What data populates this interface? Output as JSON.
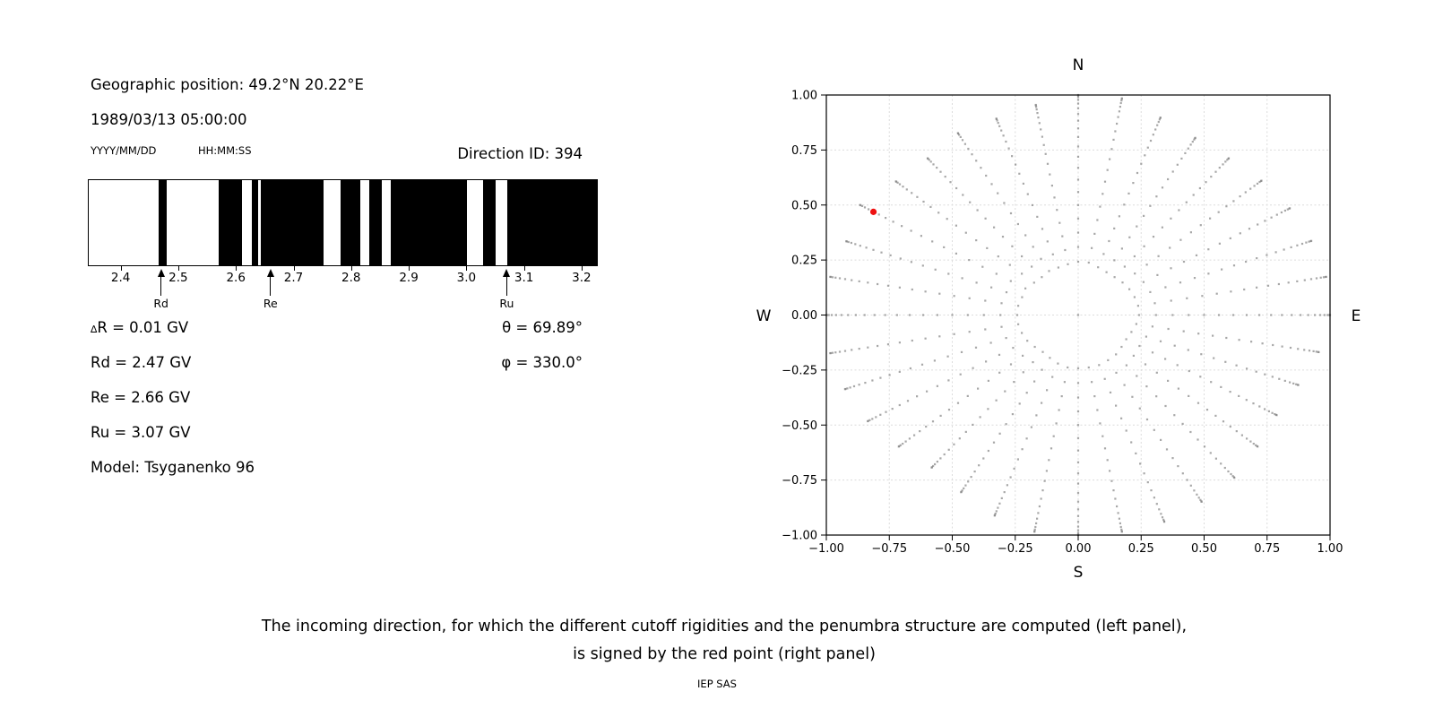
{
  "header": {
    "geo_position": "Geographic position: 49.2°N 20.22°E",
    "datetime": "1989/03/13 05:00:00",
    "date_format": "YYYY/MM/DD",
    "time_format": "HH:MM:SS",
    "direction_id": "Direction ID: 394"
  },
  "results": {
    "delta_symbol": "∆",
    "delta_rest": "R = 0.01 GV",
    "rd": "Rd = 2.47 GV",
    "re": "Re = 2.66 GV",
    "ru": "Ru = 3.07 GV",
    "model": "Model: Tsyganenko 96",
    "theta": "θ = 69.89°",
    "phi": "φ = 330.0°"
  },
  "skymap_labels": {
    "north": "N",
    "south": "S",
    "west": "W",
    "east": "E"
  },
  "caption": {
    "line1": "The incoming direction, for which the different cutoff rigidities and the penumbra structure are computed (left panel),",
    "line2": "is signed by the red point (right panel)",
    "credit": "IEP SAS"
  },
  "colors": {
    "band": "#000000",
    "axis": "#000000",
    "grid": "#dcdcdc",
    "dot": "#7f7f7f",
    "red_point": "#ee1111"
  },
  "chart_data": [
    {
      "type": "bar",
      "name": "penumbra-structure",
      "xlabel_unit": "GV",
      "xlim": [
        2.343,
        3.225
      ],
      "x_ticks": [
        {
          "v": 2.4,
          "label": "2.4"
        },
        {
          "v": 2.5,
          "label": "2.5"
        },
        {
          "v": 2.6,
          "label": "2.6"
        },
        {
          "v": 2.7,
          "label": "2.7"
        },
        {
          "v": 2.8,
          "label": "2.8"
        },
        {
          "v": 2.9,
          "label": "2.9"
        },
        {
          "v": 3.0,
          "label": "3.0"
        },
        {
          "v": 3.1,
          "label": "3.1"
        },
        {
          "v": 3.2,
          "label": "3.2"
        }
      ],
      "black_intervals": [
        [
          2.465,
          2.478
        ],
        [
          2.568,
          2.609
        ],
        [
          2.626,
          2.637
        ],
        [
          2.642,
          2.75
        ],
        [
          2.78,
          2.814
        ],
        [
          2.83,
          2.851
        ],
        [
          2.867,
          2.999
        ],
        [
          3.028,
          3.05
        ],
        [
          3.069,
          3.225
        ]
      ],
      "arrows": [
        {
          "v": 2.47,
          "label": "Rd"
        },
        {
          "v": 2.66,
          "label": "Re"
        },
        {
          "v": 3.07,
          "label": "Ru"
        }
      ]
    },
    {
      "type": "scatter",
      "name": "incoming-direction-grid",
      "xlim": [
        -1,
        1
      ],
      "ylim": [
        -1,
        1
      ],
      "grid": true,
      "x_ticks": [
        {
          "v": -1.0,
          "label": "−1.00"
        },
        {
          "v": -0.75,
          "label": "−0.75"
        },
        {
          "v": -0.5,
          "label": "−0.50"
        },
        {
          "v": -0.25,
          "label": "−0.25"
        },
        {
          "v": 0.0,
          "label": "0.00"
        },
        {
          "v": 0.25,
          "label": "0.25"
        },
        {
          "v": 0.5,
          "label": "0.50"
        },
        {
          "v": 0.75,
          "label": "0.75"
        },
        {
          "v": 1.0,
          "label": "1.00"
        }
      ],
      "y_ticks": [
        {
          "v": 1.0,
          "label": "1.00"
        },
        {
          "v": 0.75,
          "label": "0.75"
        },
        {
          "v": 0.5,
          "label": "0.50"
        },
        {
          "v": 0.25,
          "label": "0.25"
        },
        {
          "v": 0.0,
          "label": "0.00"
        },
        {
          "v": -0.25,
          "label": "−0.25"
        },
        {
          "v": -0.5,
          "label": "−0.50"
        },
        {
          "v": -0.75,
          "label": "−0.75"
        },
        {
          "v": -1.0,
          "label": "−1.00"
        }
      ],
      "spokes": {
        "azimuth_start_deg": 0,
        "azimuth_step_deg": 10,
        "count": 36,
        "zenith_start_deg": 14,
        "zenith_step_deg": 4,
        "zenith_end_deg": 90,
        "radius_is_sin_zenith": true,
        "rmax": [
          1.0,
          1.0,
          0.955,
          0.93,
          0.93,
          0.95,
          0.97,
          0.985,
          1.0,
          1.0,
          0.97,
          0.93,
          0.91,
          0.93,
          0.965,
          0.98,
          1.0,
          1.0,
          1.0,
          1.0,
          0.97,
          0.93,
          0.905,
          0.93,
          0.965,
          0.985,
          1.0,
          1.0,
          1.0,
          0.98,
          1.0,
          0.945,
          0.93,
          0.955,
          0.95,
          0.97
        ]
      },
      "center_dot": true,
      "red_point": {
        "x": -0.813,
        "y": 0.469,
        "theta_deg": 69.89,
        "phi_deg": 330.0
      }
    }
  ]
}
